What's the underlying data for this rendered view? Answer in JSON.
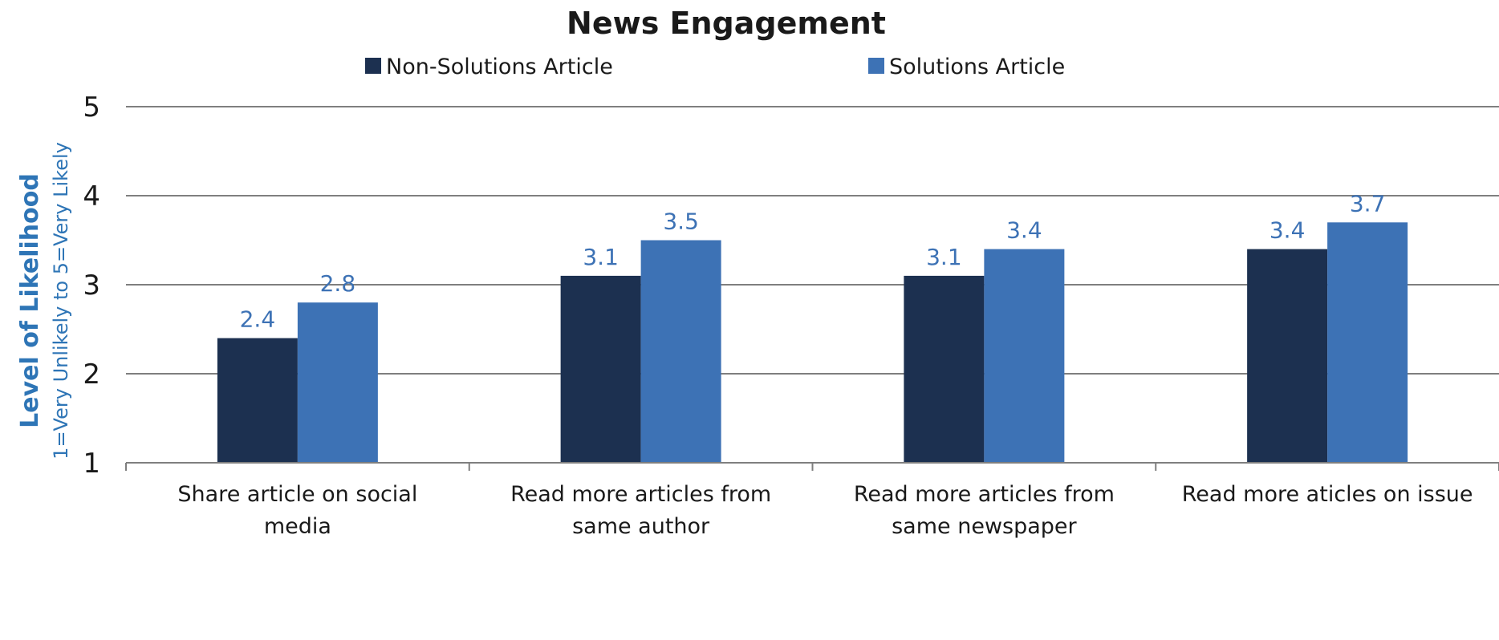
{
  "chart_data": {
    "type": "bar",
    "title": "News Engagement",
    "ylabel": "Level of Likelihood",
    "ylabel_sub": "1=Very Unlikely to 5=Very Likely",
    "xlabel": "",
    "categories": [
      [
        "Share article on social",
        "media"
      ],
      [
        "Read more articles from",
        "same author"
      ],
      [
        "Read more articles from",
        "same newspaper"
      ],
      [
        "Read more aticles on issue"
      ]
    ],
    "series": [
      {
        "name": "Non-Solutions Article",
        "values": [
          2.4,
          3.1,
          3.1,
          3.4
        ],
        "color": "#1c3050"
      },
      {
        "name": "Solutions Article",
        "values": [
          2.8,
          3.5,
          3.4,
          3.7
        ],
        "color": "#3d72b5"
      }
    ],
    "ylim": [
      1,
      5
    ],
    "yticks": [
      "1",
      "2",
      "3",
      "4",
      "5"
    ],
    "grid": true,
    "legend_position": "top",
    "data_label_color": "#3d72b5",
    "axis_title_color": "#2e75b6"
  }
}
